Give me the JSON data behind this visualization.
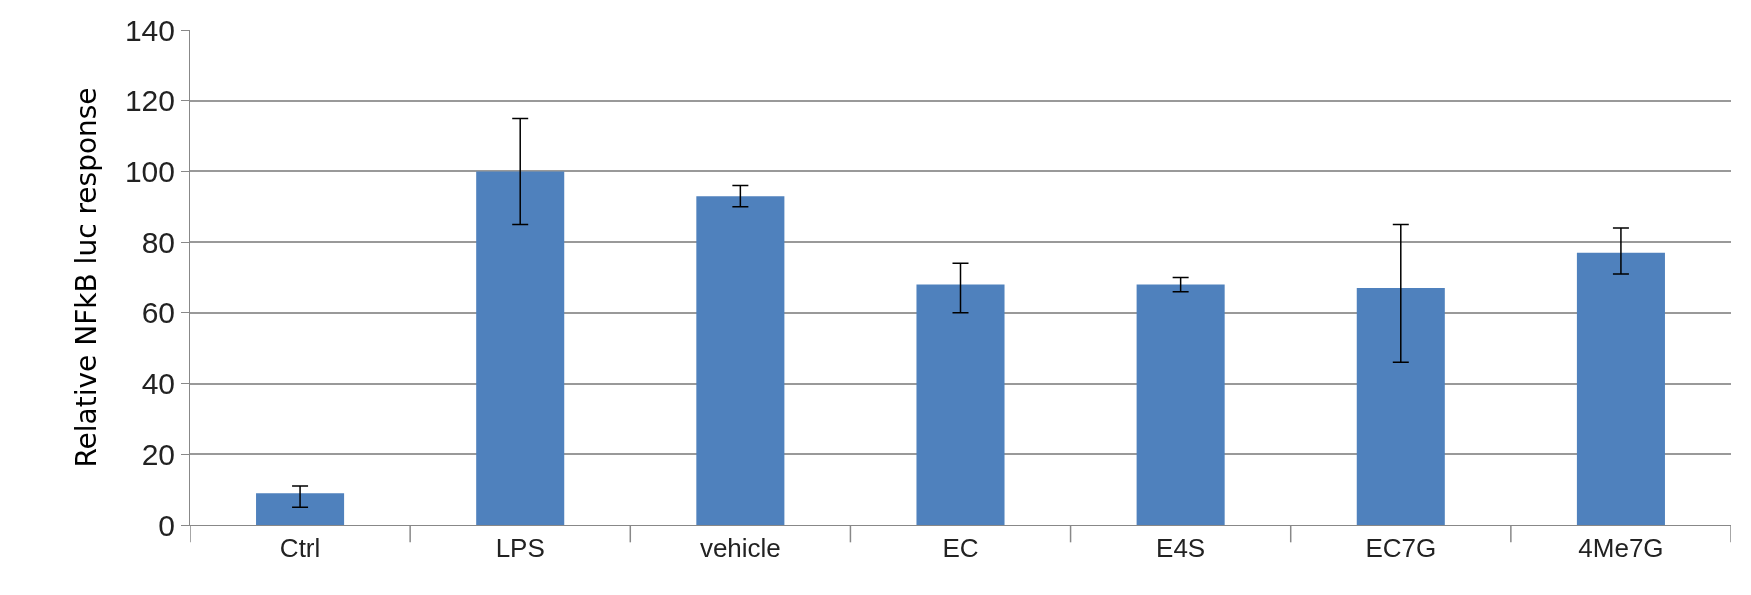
{
  "chart_data": {
    "type": "bar",
    "ylabel": "Relative NFkB luc response",
    "categories": [
      "Ctrl",
      "LPS",
      "vehicle",
      "EC",
      "E4S",
      "EC7G",
      "4Me7G"
    ],
    "values": [
      9,
      100,
      93,
      68,
      68,
      67,
      77
    ],
    "errors": [
      [
        5,
        11
      ],
      [
        85,
        115
      ],
      [
        90,
        96
      ],
      [
        60,
        74
      ],
      [
        66,
        70
      ],
      [
        46,
        85
      ],
      [
        71,
        84
      ]
    ],
    "color": "#4f81bd",
    "ylim": [
      0,
      140
    ],
    "yticks": [
      0,
      20,
      40,
      60,
      80,
      100,
      120,
      140
    ],
    "grid": "y"
  }
}
